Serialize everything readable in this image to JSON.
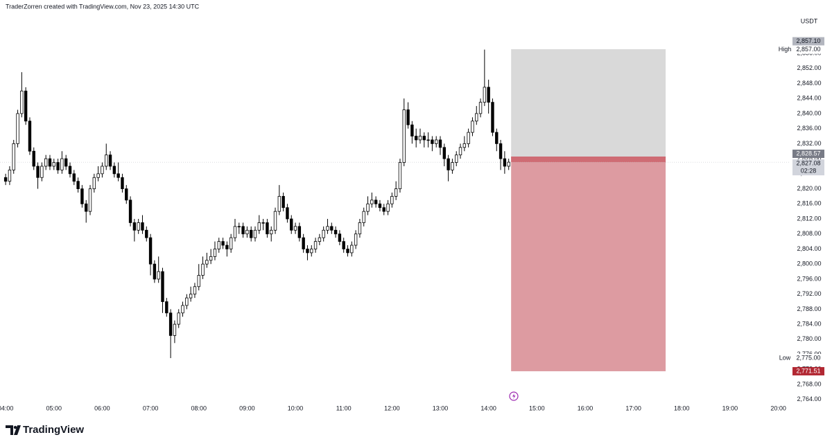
{
  "chart_data": {
    "type": "candlestick",
    "header": "TraderZorren created with TradingView.com, Nov 23, 2025 14:30 UTC",
    "currency": "USDT",
    "brand": "TradingView",
    "x": [
      240,
      245,
      250,
      255,
      260,
      265,
      270,
      275,
      280,
      285,
      290,
      295,
      300,
      305,
      310,
      315,
      320,
      325,
      330,
      335,
      340,
      345,
      350,
      355,
      360,
      365,
      370,
      375,
      380,
      385,
      390,
      395,
      400,
      405,
      410,
      415,
      420,
      425,
      430,
      435,
      440,
      445,
      450,
      455,
      460,
      465,
      470,
      475,
      480,
      485,
      490,
      495,
      500,
      505,
      510,
      515,
      520,
      525,
      530,
      535,
      540,
      545,
      550,
      555,
      560,
      565,
      570,
      575,
      580,
      585,
      590,
      595,
      600,
      605,
      610,
      615,
      620,
      625,
      630,
      635,
      640,
      645,
      650,
      655,
      660,
      665,
      670,
      675,
      680,
      685,
      690,
      695,
      700,
      705,
      710,
      715,
      720,
      725,
      730,
      735,
      740,
      745,
      750,
      755,
      760,
      765,
      770,
      775,
      780,
      785,
      790,
      795,
      800,
      805,
      810,
      815,
      820,
      825,
      830,
      835,
      840,
      845,
      850,
      855,
      860,
      865
    ],
    "open": [
      2823,
      2822,
      2825,
      2832,
      2840,
      2846,
      2838,
      2830,
      2826,
      2823,
      2826,
      2828,
      2826,
      2827,
      2825,
      2828,
      2826,
      2824,
      2822,
      2820,
      2816,
      2814,
      2820,
      2823,
      2824,
      2826,
      2829,
      2826,
      2824,
      2823,
      2820,
      2817,
      2811,
      2809,
      2811,
      2809,
      2807,
      2800,
      2796,
      2798,
      2790,
      2787,
      2781,
      2784,
      2787,
      2789,
      2791,
      2792,
      2794,
      2797,
      2800,
      2801,
      2802,
      2804,
      2806,
      2805,
      2804,
      2807,
      2810,
      2810,
      2808,
      2809,
      2807,
      2809,
      2811,
      2811,
      2808,
      2809,
      2814,
      2818,
      2815,
      2812,
      2809,
      2810,
      2807,
      2804,
      2803,
      2804,
      2806,
      2807,
      2809,
      2810,
      2809,
      2808,
      2806,
      2804,
      2803,
      2805,
      2808,
      2811,
      2814,
      2816,
      2817,
      2816,
      2815,
      2814,
      2816,
      2818,
      2820,
      2827,
      2841,
      2837,
      2834,
      2833,
      2834,
      2833,
      2833,
      2832,
      2833,
      2831,
      2828,
      2825,
      2827,
      2829,
      2831,
      2832,
      2835,
      2838,
      2840,
      2843,
      2847,
      2843,
      2835,
      2832,
      2828,
      2826
    ],
    "high": [
      2824,
      2826,
      2833,
      2841,
      2851,
      2847,
      2839,
      2831,
      2827,
      2827,
      2829,
      2829,
      2828,
      2828,
      2830,
      2829,
      2827,
      2825,
      2823,
      2821,
      2817,
      2821,
      2824,
      2826,
      2827,
      2832,
      2830,
      2827,
      2827,
      2824,
      2821,
      2818,
      2812,
      2812,
      2813,
      2810,
      2808,
      2801,
      2802,
      2799,
      2791,
      2788,
      2785,
      2788,
      2790,
      2792,
      2794,
      2795,
      2800,
      2802,
      2803,
      2804,
      2806,
      2807,
      2807,
      2806,
      2808,
      2812,
      2811,
      2811,
      2810,
      2810,
      2810,
      2813,
      2812,
      2812,
      2810,
      2815,
      2821,
      2819,
      2816,
      2813,
      2811,
      2811,
      2808,
      2805,
      2805,
      2807,
      2808,
      2810,
      2812,
      2811,
      2810,
      2809,
      2807,
      2805,
      2806,
      2809,
      2812,
      2815,
      2818,
      2819,
      2818,
      2817,
      2816,
      2817,
      2819,
      2822,
      2828,
      2844,
      2843,
      2838,
      2836,
      2836,
      2835,
      2835,
      2834,
      2834,
      2834,
      2832,
      2829,
      2828,
      2830,
      2832,
      2834,
      2836,
      2839,
      2842,
      2844,
      2857,
      2849,
      2844,
      2836,
      2833,
      2830,
      2828
    ],
    "low": [
      2821,
      2821,
      2824,
      2831,
      2839,
      2837,
      2829,
      2825,
      2820,
      2822,
      2825,
      2825,
      2825,
      2824,
      2824,
      2825,
      2823,
      2821,
      2819,
      2815,
      2811,
      2813,
      2819,
      2822,
      2823,
      2825,
      2825,
      2823,
      2822,
      2819,
      2816,
      2810,
      2806,
      2808,
      2808,
      2806,
      2797,
      2795,
      2795,
      2787,
      2786,
      2775,
      2779,
      2783,
      2786,
      2788,
      2790,
      2791,
      2793,
      2796,
      2799,
      2800,
      2801,
      2803,
      2804,
      2802,
      2803,
      2806,
      2808,
      2807,
      2807,
      2806,
      2806,
      2808,
      2809,
      2807,
      2806,
      2808,
      2813,
      2814,
      2811,
      2808,
      2808,
      2806,
      2803,
      2801,
      2802,
      2803,
      2805,
      2806,
      2808,
      2808,
      2807,
      2805,
      2803,
      2802,
      2802,
      2804,
      2807,
      2810,
      2813,
      2815,
      2815,
      2814,
      2813,
      2813,
      2815,
      2817,
      2819,
      2826,
      2836,
      2832,
      2831,
      2832,
      2831,
      2831,
      2830,
      2831,
      2829,
      2826,
      2822,
      2824,
      2826,
      2828,
      2830,
      2831,
      2834,
      2837,
      2839,
      2842,
      2840,
      2834,
      2830,
      2825,
      2824,
      2825
    ],
    "close": [
      2822,
      2825,
      2832,
      2840,
      2846,
      2838,
      2830,
      2826,
      2823,
      2826,
      2828,
      2826,
      2827,
      2825,
      2828,
      2826,
      2824,
      2822,
      2820,
      2816,
      2814,
      2820,
      2823,
      2824,
      2826,
      2829,
      2826,
      2824,
      2823,
      2820,
      2817,
      2811,
      2809,
      2811,
      2809,
      2807,
      2800,
      2796,
      2798,
      2790,
      2787,
      2781,
      2784,
      2787,
      2789,
      2791,
      2792,
      2794,
      2797,
      2800,
      2801,
      2802,
      2804,
      2806,
      2805,
      2804,
      2807,
      2810,
      2810,
      2808,
      2809,
      2807,
      2809,
      2811,
      2811,
      2808,
      2809,
      2814,
      2818,
      2815,
      2812,
      2809,
      2810,
      2807,
      2804,
      2803,
      2804,
      2806,
      2807,
      2809,
      2810,
      2809,
      2808,
      2806,
      2804,
      2803,
      2805,
      2808,
      2811,
      2814,
      2816,
      2817,
      2816,
      2815,
      2814,
      2816,
      2818,
      2820,
      2827,
      2841,
      2837,
      2834,
      2833,
      2834,
      2833,
      2833,
      2832,
      2833,
      2831,
      2828,
      2825,
      2827,
      2829,
      2831,
      2832,
      2835,
      2838,
      2840,
      2843,
      2847,
      2843,
      2835,
      2832,
      2828,
      2826,
      2827.08
    ],
    "xlim": [
      233,
      1215
    ],
    "ylim": [
      2763.4,
      2866.5
    ],
    "xticks": [
      {
        "value": 240,
        "label": "04:00"
      },
      {
        "value": 300,
        "label": "05:00"
      },
      {
        "value": 360,
        "label": "06:00"
      },
      {
        "value": 420,
        "label": "07:00"
      },
      {
        "value": 480,
        "label": "08:00"
      },
      {
        "value": 540,
        "label": "09:00"
      },
      {
        "value": 600,
        "label": "10:00"
      },
      {
        "value": 660,
        "label": "11:00"
      },
      {
        "value": 720,
        "label": "12:00"
      },
      {
        "value": 780,
        "label": "13:00"
      },
      {
        "value": 840,
        "label": "14:00"
      },
      {
        "value": 900,
        "label": "15:00"
      },
      {
        "value": 960,
        "label": "16:00"
      },
      {
        "value": 1020,
        "label": "17:00"
      },
      {
        "value": 1080,
        "label": "18:00"
      },
      {
        "value": 1140,
        "label": "19:00"
      },
      {
        "value": 1200,
        "label": "20:00"
      }
    ],
    "yticks": [
      {
        "value": 2764,
        "label": "2,764.00"
      },
      {
        "value": 2768,
        "label": "2,768.00"
      },
      {
        "value": 2772,
        "label": "2,772.00"
      },
      {
        "value": 2776,
        "label": "2,776.00"
      },
      {
        "value": 2780,
        "label": "2,780.00"
      },
      {
        "value": 2784,
        "label": "2,784.00"
      },
      {
        "value": 2788,
        "label": "2,788.00"
      },
      {
        "value": 2792,
        "label": "2,792.00"
      },
      {
        "value": 2796,
        "label": "2,796.00"
      },
      {
        "value": 2800,
        "label": "2,800.00"
      },
      {
        "value": 2804,
        "label": "2,804.00"
      },
      {
        "value": 2808,
        "label": "2,808.00"
      },
      {
        "value": 2812,
        "label": "2,812.00"
      },
      {
        "value": 2816,
        "label": "2,816.00"
      },
      {
        "value": 2820,
        "label": "2,820.00"
      },
      {
        "value": 2824,
        "label": "2,824.00"
      },
      {
        "value": 2828,
        "label": "2,828.00"
      },
      {
        "value": 2832,
        "label": "2,832.00"
      },
      {
        "value": 2836,
        "label": "2,836.00"
      },
      {
        "value": 2840,
        "label": "2,840.00"
      },
      {
        "value": 2844,
        "label": "2,844.00"
      },
      {
        "value": 2848,
        "label": "2,848.00"
      },
      {
        "value": 2852,
        "label": "2,852.00"
      },
      {
        "value": 2856,
        "label": "2,856.00"
      }
    ],
    "grid": false,
    "up_color": "#ffffff",
    "down_color": "#000000",
    "position": {
      "x_start": 868,
      "x_end": 1060,
      "target": 2857.1,
      "target_label": "2,857.10",
      "target_color": "#d9d9d9",
      "entry": 2828.57,
      "entry_label": "2,828.57",
      "stop": 2771.51,
      "stop_label": "2,771.51",
      "stop_color": "#dd9ba1",
      "band_color": "#cf6c74",
      "stop_label_color": "#b22833"
    },
    "last": {
      "value": 2827.08,
      "label": "2,827.08",
      "countdown": "02:28"
    },
    "high_mark": {
      "name": "High",
      "value": 2857.0,
      "label": "2,857.00"
    },
    "low_mark": {
      "name": "Low",
      "value": 2775.0,
      "label": "2,775.00"
    }
  }
}
